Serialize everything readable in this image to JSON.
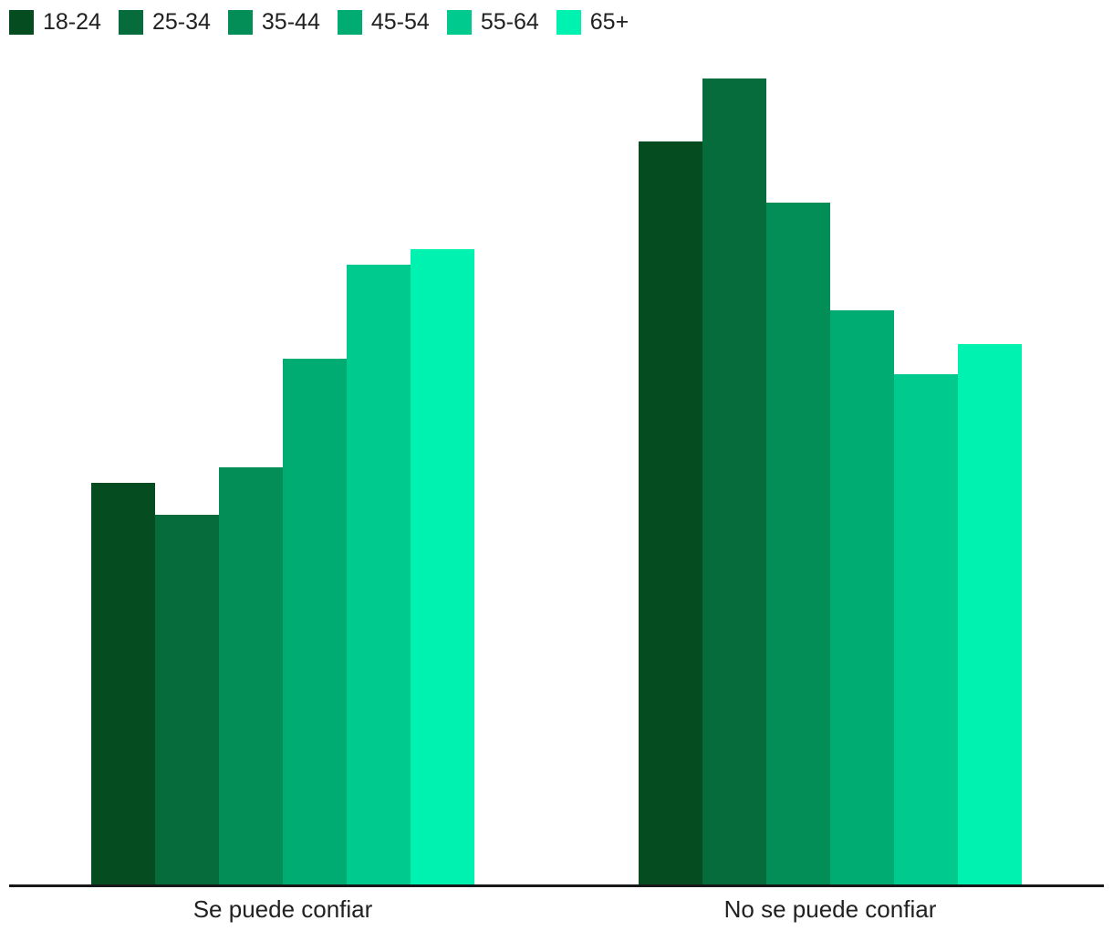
{
  "chart_data": {
    "type": "bar",
    "title": "",
    "categories": [
      "Se puede confiar",
      "No se puede confiar"
    ],
    "series": [
      {
        "name": "18-24",
        "color": "#054d20",
        "values": [
          34.2,
          63.2
        ]
      },
      {
        "name": "25-34",
        "color": "#066c3c",
        "values": [
          31.5,
          68.5
        ]
      },
      {
        "name": "35-44",
        "color": "#038e57",
        "values": [
          35.5,
          58.0
        ]
      },
      {
        "name": "45-54",
        "color": "#00ac72",
        "values": [
          44.7,
          48.8
        ]
      },
      {
        "name": "55-64",
        "color": "#00ca8d",
        "values": [
          52.7,
          43.4
        ]
      },
      {
        "name": "65+",
        "color": "#00f2b0",
        "values": [
          54.0,
          46.0
        ]
      }
    ],
    "xlabel": "",
    "ylabel": "",
    "ylim": [
      0,
      70
    ],
    "y_axis_visible": false,
    "grid": false,
    "legend_position": "top-left",
    "bar_gap_within_group": 0
  },
  "axis": {
    "line_color": "#16181a",
    "label_color": "#212121"
  }
}
